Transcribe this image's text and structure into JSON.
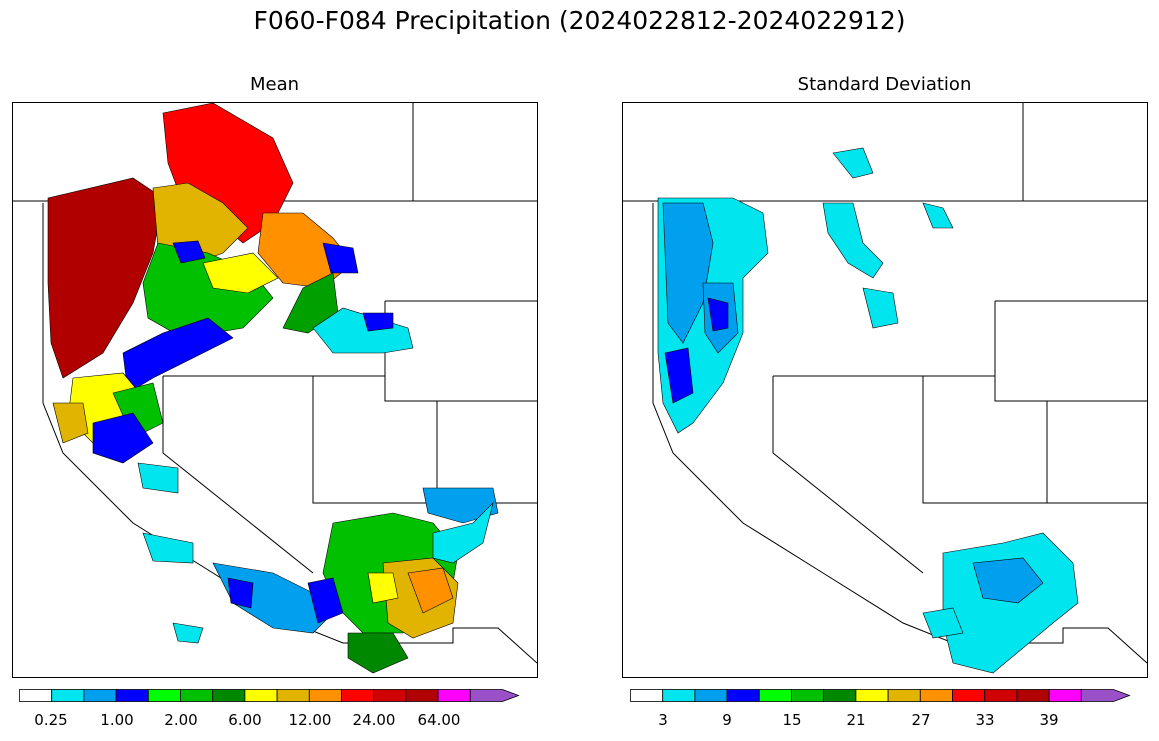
{
  "title": "F060-F084 Precipitation (2024022812-2024022912)",
  "panels": [
    {
      "title": "Mean",
      "colorbar": {
        "colors": [
          "#ffffff",
          "#00e5ee",
          "#00a0ee",
          "#0000ff",
          "#00ff00",
          "#00c000",
          "#008800",
          "#ffff00",
          "#e0b400",
          "#ff9000",
          "#ff0000",
          "#d00000",
          "#b00000",
          "#ff00ff",
          "#9a50c8"
        ],
        "tick_labels": [
          "0.25",
          "1.00",
          "2.00",
          "6.00",
          "12.00",
          "24.00",
          "64.00"
        ]
      }
    },
    {
      "title": "Standard Deviation",
      "colorbar": {
        "colors": [
          "#ffffff",
          "#00e5ee",
          "#00a0ee",
          "#0000ff",
          "#00ff00",
          "#00c000",
          "#008800",
          "#ffff00",
          "#e0b400",
          "#ff9000",
          "#ff0000",
          "#d00000",
          "#b00000",
          "#ff00ff",
          "#9a50c8"
        ],
        "tick_labels": [
          "3",
          "9",
          "15",
          "21",
          "27",
          "33",
          "39"
        ]
      }
    }
  ]
}
